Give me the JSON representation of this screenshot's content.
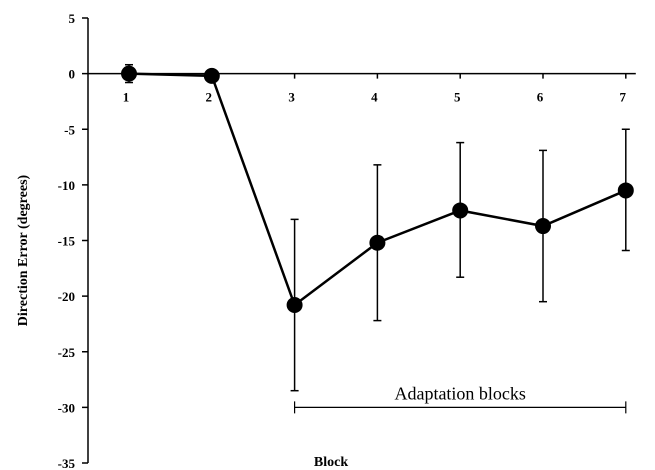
{
  "chart_data": {
    "type": "line",
    "title": "",
    "xlabel": "Block",
    "ylabel": "Direction Error (degrees)",
    "ylim": [
      -35,
      5
    ],
    "yticks": [
      5,
      0,
      -5,
      -10,
      -15,
      -20,
      -25,
      -30,
      -35
    ],
    "categories": [
      "1",
      "2",
      "3",
      "4",
      "5",
      "6",
      "7"
    ],
    "series": [
      {
        "values": [
          0.0,
          -0.2,
          -20.8,
          -15.2,
          -12.3,
          -13.7,
          -10.5
        ],
        "error_low": [
          -0.8,
          -0.4,
          -28.5,
          -22.2,
          -18.3,
          -20.5,
          -15.9
        ],
        "error_high": [
          0.8,
          0.0,
          -13.1,
          -8.2,
          -6.2,
          -6.9,
          -5.0
        ],
        "color": "#000000"
      }
    ],
    "grid": false,
    "legend": "none",
    "annotations": [
      {
        "text": "Adaptation blocks",
        "from": "3",
        "to": "7",
        "y": -30
      }
    ]
  }
}
